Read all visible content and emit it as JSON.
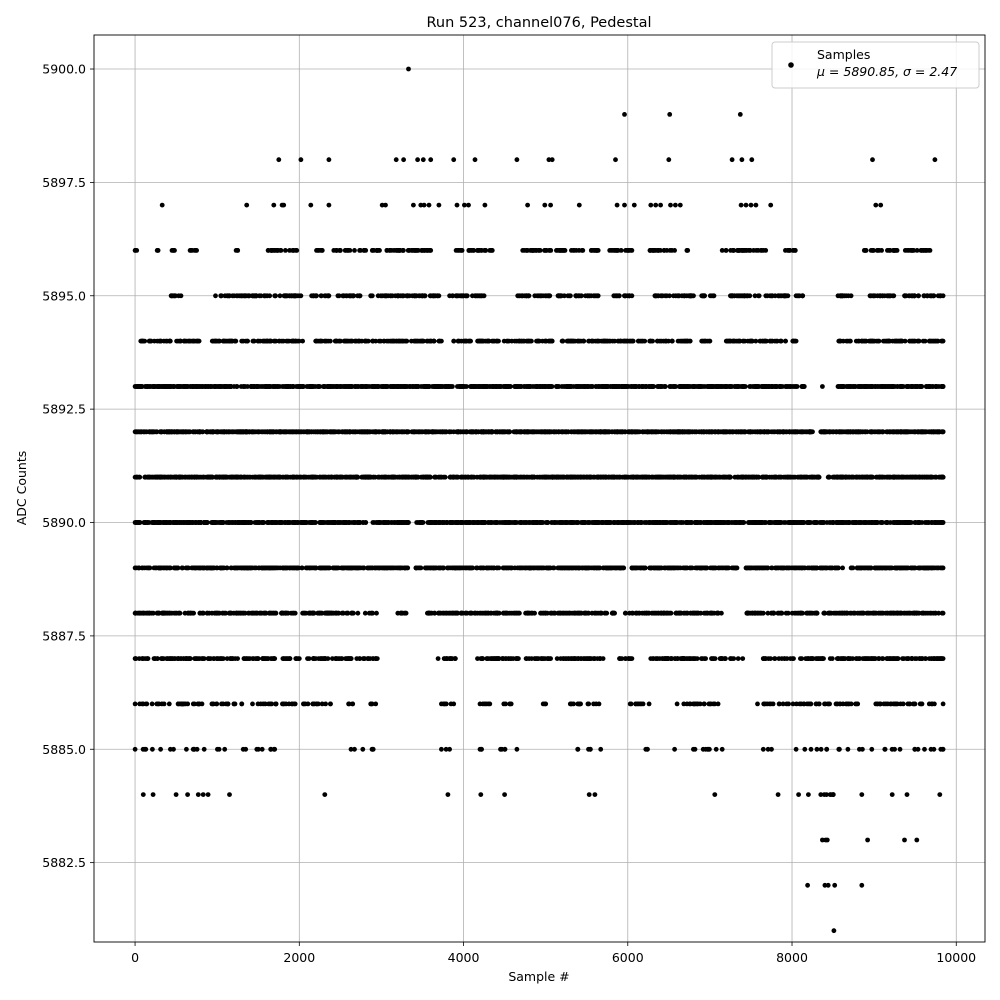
{
  "chart_data": {
    "type": "scatter",
    "title": "Run 523, channel076, Pedestal",
    "xlabel": "Sample #",
    "ylabel": "ADC Counts",
    "xlim": [
      -500,
      10350
    ],
    "ylim": [
      5880.75,
      5900.75
    ],
    "x_ticks": [
      0,
      2000,
      4000,
      6000,
      8000,
      10000
    ],
    "y_ticks": [
      5882.5,
      5885.0,
      5887.5,
      5890.0,
      5892.5,
      5895.0,
      5897.5,
      5900.0
    ],
    "grid": true,
    "legend_position": "top-right",
    "marker_color": "#000000",
    "series": [
      {
        "name": "Samples",
        "stats_label": "μ = 5890.85, σ = 2.47",
        "x_range": [
          0,
          9840
        ],
        "levels": [
          {
            "y": 5881,
            "n": 1,
            "points": [
              8510
            ]
          },
          {
            "y": 5882,
            "n": 4,
            "points": [
              8190,
              8400,
              8440,
              8520,
              8850
            ]
          },
          {
            "y": 5883,
            "n": 5,
            "points": [
              8370,
              8410,
              8430,
              8920,
              9370,
              9520
            ]
          },
          {
            "y": 5884,
            "n": 30,
            "points": [
              100,
              220,
              500,
              640,
              770,
              830,
              890,
              1150,
              2310,
              3810,
              4210,
              4500,
              5530,
              5600,
              7060,
              7830,
              8080,
              8200,
              8350,
              8420,
              8500,
              8850,
              9220,
              9400,
              9800
            ],
            "min": 8300,
            "max": 8520
          },
          {
            "y": 5885,
            "n": 70,
            "segments": [
              [
                0,
                1700
              ],
              [
                2630,
                2900
              ],
              [
                3730,
                3830
              ],
              [
                4200,
                4220
              ],
              [
                4450,
                4650
              ],
              [
                5390,
                5670
              ],
              [
                6220,
                6240
              ],
              [
                6570,
                7150
              ],
              [
                7650,
                7750
              ],
              [
                8050,
                8680
              ],
              [
                8820,
                9840
              ]
            ]
          },
          {
            "y": 5886,
            "n": 210,
            "segments": [
              [
                0,
                1300
              ],
              [
                1430,
                1950
              ],
              [
                2050,
                2380
              ],
              [
                2600,
                2650
              ],
              [
                2870,
                2930
              ],
              [
                3730,
                3880
              ],
              [
                4200,
                4320
              ],
              [
                4490,
                4580
              ],
              [
                4970,
                5000
              ],
              [
                5300,
                5650
              ],
              [
                6030,
                6260
              ],
              [
                6600,
                7100
              ],
              [
                7580,
                8800
              ],
              [
                9020,
                9840
              ]
            ]
          },
          {
            "y": 5887,
            "n": 520,
            "segments": [
              [
                0,
                1700
              ],
              [
                1800,
                2000
              ],
              [
                2100,
                2950
              ],
              [
                3690,
                3900
              ],
              [
                4170,
                5060
              ],
              [
                5140,
                5700
              ],
              [
                5900,
                6050
              ],
              [
                6280,
                7400
              ],
              [
                7650,
                9840
              ]
            ]
          },
          {
            "y": 5888,
            "n": 650,
            "segments": [
              [
                0,
                1950
              ],
              [
                2040,
                2940
              ],
              [
                3200,
                3300
              ],
              [
                3560,
                5680
              ],
              [
                5720,
                5840
              ],
              [
                5970,
                7140
              ],
              [
                7450,
                9840
              ]
            ]
          },
          {
            "y": 5889,
            "n": 900,
            "segments": [
              [
                0,
                3320
              ],
              [
                3420,
                5950
              ],
              [
                6050,
                7330
              ],
              [
                7440,
                9840
              ]
            ]
          },
          {
            "y": 5890,
            "n": 1100,
            "segments": [
              [
                0,
                3330
              ],
              [
                3430,
                9840
              ]
            ]
          },
          {
            "y": 5891,
            "n": 1200,
            "segments": [
              [
                0,
                8330
              ],
              [
                8440,
                9840
              ]
            ]
          },
          {
            "y": 5892,
            "n": 1300,
            "segments": [
              [
                0,
                8250
              ],
              [
                8350,
                9840
              ]
            ]
          },
          {
            "y": 5893,
            "n": 1000,
            "segments": [
              [
                0,
                8150
              ],
              [
                8560,
                9840
              ]
            ],
            "points": [
              8370
            ]
          },
          {
            "y": 5894,
            "n": 560,
            "segments": [
              [
                70,
                780
              ],
              [
                940,
                2040
              ],
              [
                2200,
                3730
              ],
              [
                3880,
                5080
              ],
              [
                5200,
                6760
              ],
              [
                6900,
                7000
              ],
              [
                7200,
                8050
              ],
              [
                8570,
                9840
              ]
            ]
          },
          {
            "y": 5895,
            "n": 420,
            "segments": [
              [
                440,
                560
              ],
              [
                980,
                2020
              ],
              [
                2150,
                2360
              ],
              [
                2470,
                2740
              ],
              [
                2870,
                3700
              ],
              [
                3830,
                4250
              ],
              [
                4660,
                5050
              ],
              [
                5150,
                5640
              ],
              [
                5830,
                6050
              ],
              [
                6330,
                6800
              ],
              [
                6900,
                7050
              ],
              [
                7250,
                7950
              ],
              [
                8050,
                8130
              ],
              [
                8560,
                8720
              ],
              [
                8950,
                9240
              ],
              [
                9370,
                9840
              ]
            ]
          },
          {
            "y": 5896,
            "n": 280,
            "segments": [
              [
                0,
                20
              ],
              [
                270,
                280
              ],
              [
                450,
                480
              ],
              [
                670,
                750
              ],
              [
                1230,
                1250
              ],
              [
                1620,
                1970
              ],
              [
                2210,
                2280
              ],
              [
                2420,
                3600
              ],
              [
                3910,
                4350
              ],
              [
                4720,
                5640
              ],
              [
                5780,
                6050
              ],
              [
                6270,
                6570
              ],
              [
                6720,
                6730
              ],
              [
                7150,
                7680
              ],
              [
                7920,
                8040
              ],
              [
                8880,
                9280
              ],
              [
                9380,
                9680
              ]
            ]
          },
          {
            "y": 5897,
            "n": 60,
            "points": [
              330,
              1360,
              1690,
              1790,
              1810,
              2140,
              2360,
              3010,
              3050,
              3390,
              3480,
              3520,
              3580,
              3700,
              3920,
              4010,
              4060,
              4260,
              4780,
              4990,
              5060,
              5410,
              5870,
              5960,
              6080,
              6280,
              6340,
              6400,
              6520,
              6580,
              6640,
              7380,
              7440,
              7500,
              7560,
              7740,
              9020,
              9080
            ]
          },
          {
            "y": 5898,
            "n": 22,
            "points": [
              1750,
              2020,
              2360,
              3180,
              3270,
              3440,
              3510,
              3600,
              3880,
              4140,
              4650,
              5040,
              5080,
              5850,
              6500,
              7270,
              7390,
              7510,
              8980,
              9740
            ]
          },
          {
            "y": 5899,
            "n": 3,
            "points": [
              5960,
              6510,
              7370
            ]
          },
          {
            "y": 5900,
            "n": 1,
            "points": [
              3330
            ]
          }
        ]
      }
    ]
  }
}
